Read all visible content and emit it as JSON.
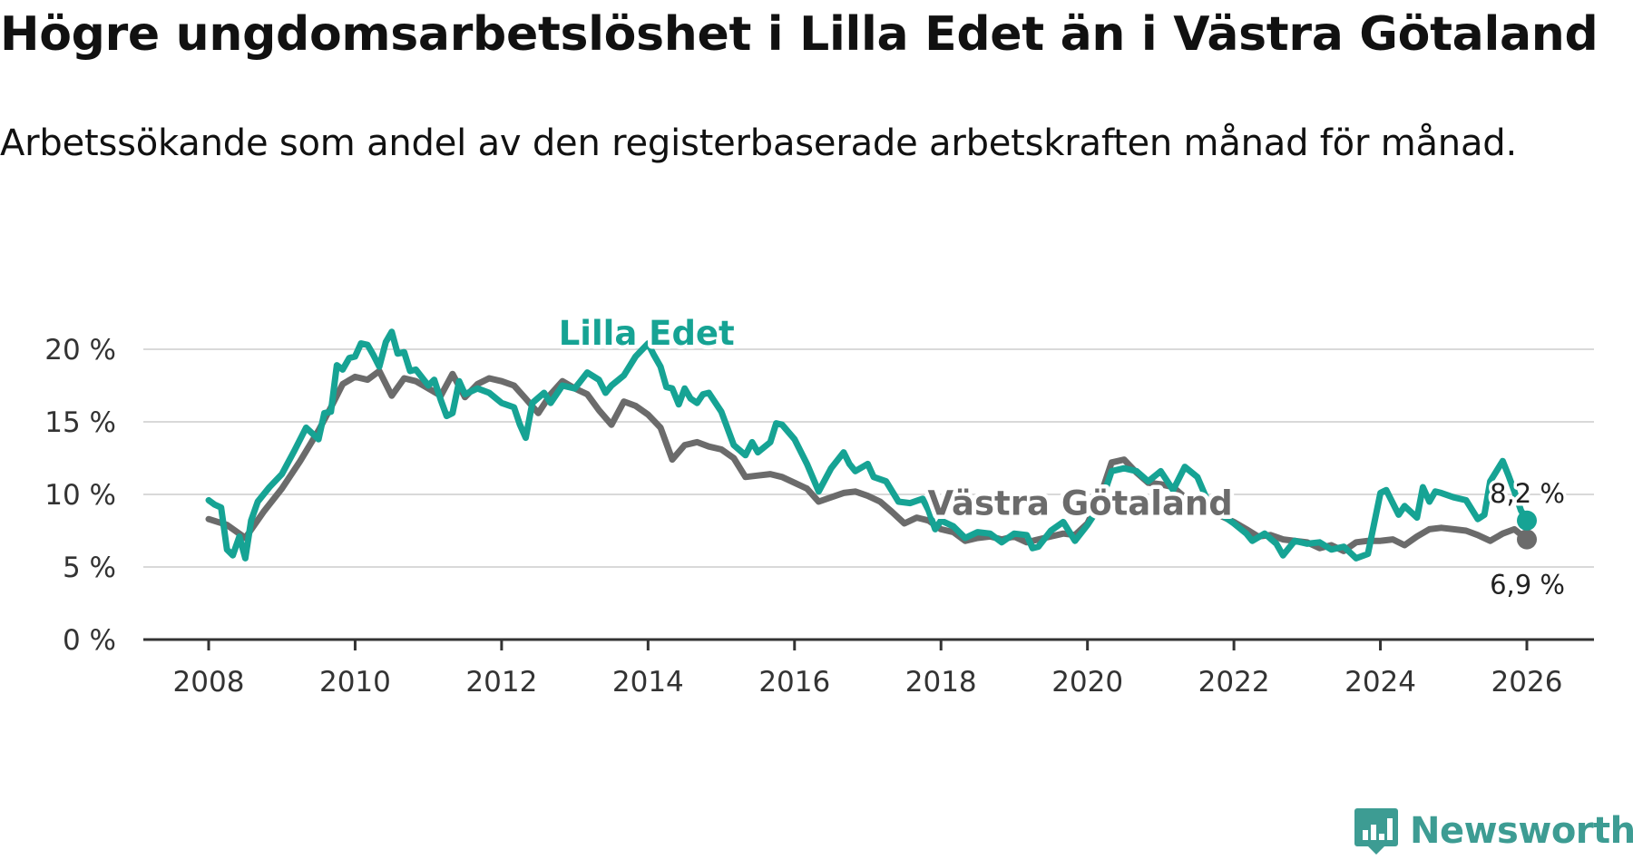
{
  "title": "Högre ungdomsarbetslöshet i Lilla Edet än i Västra Götaland",
  "subtitle": "Arbetssökande som andel av den registerbaserade arbetskraften månad för månad.",
  "brand": {
    "name": "Newsworthy",
    "icon": "newsworthy-logo-icon",
    "color": "#3d9c93"
  },
  "chart_data": {
    "type": "line",
    "title": "Högre ungdomsarbetslöshet i Lilla Edet än i Västra Götaland",
    "subtitle": "Arbetssökande som andel av den registerbaserade arbetskraften månad för månad.",
    "xlabel": "",
    "ylabel": "",
    "xlim": [
      2008,
      2026.5
    ],
    "ylim": [
      0,
      21.5
    ],
    "grid": true,
    "y_ticks": [
      {
        "value": 0,
        "label": "0 %"
      },
      {
        "value": 5,
        "label": "5 %"
      },
      {
        "value": 10,
        "label": "10 %"
      },
      {
        "value": 15,
        "label": "15 %"
      },
      {
        "value": 20,
        "label": "20 %"
      }
    ],
    "x_ticks": [
      {
        "value": 2008,
        "label": "2008"
      },
      {
        "value": 2010,
        "label": "2010"
      },
      {
        "value": 2012,
        "label": "2012"
      },
      {
        "value": 2014,
        "label": "2014"
      },
      {
        "value": 2016,
        "label": "2016"
      },
      {
        "value": 2018,
        "label": "2018"
      },
      {
        "value": 2020,
        "label": "2020"
      },
      {
        "value": 2022,
        "label": "2022"
      },
      {
        "value": 2024,
        "label": "2024"
      },
      {
        "value": 2026,
        "label": "2026"
      }
    ],
    "series": [
      {
        "name": "Västra Götaland",
        "label": "Västra Götaland",
        "color": "#6b6b6b",
        "end_label": "6,9 %",
        "points": [
          [
            2008.0,
            8.3
          ],
          [
            2008.25,
            7.9
          ],
          [
            2008.5,
            7.0
          ],
          [
            2008.75,
            8.8
          ],
          [
            2009.0,
            10.4
          ],
          [
            2009.25,
            12.3
          ],
          [
            2009.5,
            14.4
          ],
          [
            2009.67,
            16.0
          ],
          [
            2009.83,
            17.6
          ],
          [
            2010.0,
            18.1
          ],
          [
            2010.17,
            17.9
          ],
          [
            2010.33,
            18.5
          ],
          [
            2010.5,
            16.8
          ],
          [
            2010.67,
            18.0
          ],
          [
            2010.83,
            17.8
          ],
          [
            2011.0,
            17.3
          ],
          [
            2011.17,
            16.8
          ],
          [
            2011.33,
            18.3
          ],
          [
            2011.5,
            16.7
          ],
          [
            2011.67,
            17.6
          ],
          [
            2011.83,
            18.0
          ],
          [
            2012.0,
            17.8
          ],
          [
            2012.17,
            17.5
          ],
          [
            2012.33,
            16.6
          ],
          [
            2012.5,
            15.6
          ],
          [
            2012.67,
            16.9
          ],
          [
            2012.83,
            17.8
          ],
          [
            2013.0,
            17.3
          ],
          [
            2013.17,
            16.9
          ],
          [
            2013.33,
            15.8
          ],
          [
            2013.5,
            14.8
          ],
          [
            2013.67,
            16.4
          ],
          [
            2013.83,
            16.1
          ],
          [
            2014.0,
            15.5
          ],
          [
            2014.17,
            14.6
          ],
          [
            2014.33,
            12.4
          ],
          [
            2014.5,
            13.4
          ],
          [
            2014.67,
            13.6
          ],
          [
            2014.83,
            13.3
          ],
          [
            2015.0,
            13.1
          ],
          [
            2015.17,
            12.5
          ],
          [
            2015.33,
            11.2
          ],
          [
            2015.5,
            11.3
          ],
          [
            2015.67,
            11.4
          ],
          [
            2015.83,
            11.2
          ],
          [
            2016.0,
            10.8
          ],
          [
            2016.17,
            10.4
          ],
          [
            2016.33,
            9.5
          ],
          [
            2016.5,
            9.8
          ],
          [
            2016.67,
            10.1
          ],
          [
            2016.83,
            10.2
          ],
          [
            2017.0,
            9.9
          ],
          [
            2017.17,
            9.5
          ],
          [
            2017.33,
            8.8
          ],
          [
            2017.5,
            8.0
          ],
          [
            2017.67,
            8.4
          ],
          [
            2017.83,
            8.2
          ],
          [
            2018.0,
            7.6
          ],
          [
            2018.17,
            7.4
          ],
          [
            2018.33,
            6.8
          ],
          [
            2018.5,
            7.0
          ],
          [
            2018.67,
            7.1
          ],
          [
            2018.83,
            6.9
          ],
          [
            2019.0,
            7.1
          ],
          [
            2019.17,
            6.7
          ],
          [
            2019.33,
            6.9
          ],
          [
            2019.5,
            7.1
          ],
          [
            2019.67,
            7.3
          ],
          [
            2019.83,
            7.2
          ],
          [
            2020.0,
            8.0
          ],
          [
            2020.17,
            9.8
          ],
          [
            2020.33,
            12.2
          ],
          [
            2020.5,
            12.4
          ],
          [
            2020.67,
            11.5
          ],
          [
            2020.83,
            10.8
          ],
          [
            2021.0,
            10.7
          ],
          [
            2021.17,
            10.5
          ],
          [
            2021.33,
            9.8
          ],
          [
            2021.5,
            9.3
          ],
          [
            2021.67,
            8.9
          ],
          [
            2021.83,
            8.5
          ],
          [
            2022.0,
            8.1
          ],
          [
            2022.17,
            7.6
          ],
          [
            2022.33,
            7.1
          ],
          [
            2022.5,
            7.2
          ],
          [
            2022.67,
            6.9
          ],
          [
            2022.83,
            6.8
          ],
          [
            2023.0,
            6.7
          ],
          [
            2023.17,
            6.3
          ],
          [
            2023.33,
            6.5
          ],
          [
            2023.5,
            6.1
          ],
          [
            2023.67,
            6.7
          ],
          [
            2023.83,
            6.8
          ],
          [
            2024.0,
            6.8
          ],
          [
            2024.17,
            6.9
          ],
          [
            2024.33,
            6.5
          ],
          [
            2024.5,
            7.1
          ],
          [
            2024.67,
            7.6
          ],
          [
            2024.83,
            7.7
          ],
          [
            2025.0,
            7.6
          ],
          [
            2025.17,
            7.5
          ],
          [
            2025.33,
            7.2
          ],
          [
            2025.5,
            6.8
          ],
          [
            2025.67,
            7.3
          ],
          [
            2025.83,
            7.6
          ],
          [
            2026.0,
            6.9
          ]
        ]
      },
      {
        "name": "Lilla Edet",
        "label": "Lilla Edet",
        "color": "#16a394",
        "end_label": "8,2 %",
        "points": [
          [
            2008.0,
            9.6
          ],
          [
            2008.08,
            9.3
          ],
          [
            2008.17,
            9.1
          ],
          [
            2008.25,
            6.2
          ],
          [
            2008.33,
            5.8
          ],
          [
            2008.42,
            7.1
          ],
          [
            2008.5,
            5.6
          ],
          [
            2008.58,
            8.2
          ],
          [
            2008.67,
            9.5
          ],
          [
            2008.83,
            10.5
          ],
          [
            2009.0,
            11.4
          ],
          [
            2009.17,
            13.0
          ],
          [
            2009.33,
            14.6
          ],
          [
            2009.5,
            13.8
          ],
          [
            2009.58,
            15.6
          ],
          [
            2009.67,
            15.7
          ],
          [
            2009.75,
            18.9
          ],
          [
            2009.83,
            18.6
          ],
          [
            2009.92,
            19.4
          ],
          [
            2010.0,
            19.5
          ],
          [
            2010.08,
            20.4
          ],
          [
            2010.17,
            20.3
          ],
          [
            2010.25,
            19.6
          ],
          [
            2010.33,
            18.8
          ],
          [
            2010.42,
            20.5
          ],
          [
            2010.5,
            21.2
          ],
          [
            2010.58,
            19.7
          ],
          [
            2010.67,
            19.8
          ],
          [
            2010.75,
            18.5
          ],
          [
            2010.83,
            18.6
          ],
          [
            2011.0,
            17.5
          ],
          [
            2011.08,
            17.9
          ],
          [
            2011.17,
            16.5
          ],
          [
            2011.25,
            15.4
          ],
          [
            2011.33,
            15.6
          ],
          [
            2011.42,
            17.8
          ],
          [
            2011.5,
            16.9
          ],
          [
            2011.67,
            17.3
          ],
          [
            2011.83,
            17.0
          ],
          [
            2012.0,
            16.3
          ],
          [
            2012.17,
            16.0
          ],
          [
            2012.25,
            14.8
          ],
          [
            2012.33,
            13.9
          ],
          [
            2012.42,
            16.3
          ],
          [
            2012.58,
            17.0
          ],
          [
            2012.67,
            16.3
          ],
          [
            2012.83,
            17.5
          ],
          [
            2013.0,
            17.3
          ],
          [
            2013.17,
            18.4
          ],
          [
            2013.33,
            17.9
          ],
          [
            2013.42,
            17.0
          ],
          [
            2013.5,
            17.5
          ],
          [
            2013.67,
            18.2
          ],
          [
            2013.83,
            19.5
          ],
          [
            2014.0,
            20.4
          ],
          [
            2014.08,
            19.6
          ],
          [
            2014.17,
            18.8
          ],
          [
            2014.25,
            17.4
          ],
          [
            2014.33,
            17.3
          ],
          [
            2014.42,
            16.2
          ],
          [
            2014.5,
            17.3
          ],
          [
            2014.58,
            16.6
          ],
          [
            2014.67,
            16.3
          ],
          [
            2014.75,
            16.9
          ],
          [
            2014.83,
            17.0
          ],
          [
            2015.0,
            15.7
          ],
          [
            2015.17,
            13.4
          ],
          [
            2015.33,
            12.7
          ],
          [
            2015.42,
            13.6
          ],
          [
            2015.5,
            12.9
          ],
          [
            2015.67,
            13.6
          ],
          [
            2015.75,
            14.9
          ],
          [
            2015.83,
            14.8
          ],
          [
            2016.0,
            13.8
          ],
          [
            2016.17,
            12.1
          ],
          [
            2016.33,
            10.2
          ],
          [
            2016.5,
            11.8
          ],
          [
            2016.67,
            12.9
          ],
          [
            2016.75,
            12.1
          ],
          [
            2016.83,
            11.6
          ],
          [
            2017.0,
            12.1
          ],
          [
            2017.08,
            11.2
          ],
          [
            2017.25,
            10.9
          ],
          [
            2017.42,
            9.5
          ],
          [
            2017.58,
            9.4
          ],
          [
            2017.75,
            9.7
          ],
          [
            2017.83,
            8.9
          ],
          [
            2017.92,
            7.6
          ],
          [
            2018.0,
            8.2
          ],
          [
            2018.17,
            7.8
          ],
          [
            2018.33,
            7.0
          ],
          [
            2018.5,
            7.4
          ],
          [
            2018.67,
            7.3
          ],
          [
            2018.83,
            6.7
          ],
          [
            2019.0,
            7.3
          ],
          [
            2019.17,
            7.2
          ],
          [
            2019.25,
            6.3
          ],
          [
            2019.33,
            6.4
          ],
          [
            2019.5,
            7.5
          ],
          [
            2019.67,
            8.1
          ],
          [
            2019.83,
            6.8
          ],
          [
            2020.0,
            7.9
          ],
          [
            2020.17,
            9.2
          ],
          [
            2020.33,
            11.6
          ],
          [
            2020.5,
            11.8
          ],
          [
            2020.67,
            11.6
          ],
          [
            2020.83,
            10.9
          ],
          [
            2021.0,
            11.6
          ],
          [
            2021.17,
            10.3
          ],
          [
            2021.33,
            11.9
          ],
          [
            2021.5,
            11.2
          ],
          [
            2021.67,
            9.2
          ],
          [
            2021.83,
            8.6
          ],
          [
            2022.0,
            8.0
          ],
          [
            2022.17,
            7.3
          ],
          [
            2022.25,
            6.8
          ],
          [
            2022.42,
            7.3
          ],
          [
            2022.58,
            6.6
          ],
          [
            2022.67,
            5.8
          ],
          [
            2022.83,
            6.8
          ],
          [
            2023.0,
            6.6
          ],
          [
            2023.17,
            6.7
          ],
          [
            2023.33,
            6.2
          ],
          [
            2023.5,
            6.4
          ],
          [
            2023.67,
            5.6
          ],
          [
            2023.83,
            5.9
          ],
          [
            2024.0,
            10.1
          ],
          [
            2024.08,
            10.3
          ],
          [
            2024.25,
            8.6
          ],
          [
            2024.33,
            9.2
          ],
          [
            2024.5,
            8.4
          ],
          [
            2024.58,
            10.5
          ],
          [
            2024.67,
            9.5
          ],
          [
            2024.75,
            10.2
          ],
          [
            2024.83,
            10.1
          ],
          [
            2025.0,
            9.8
          ],
          [
            2025.17,
            9.6
          ],
          [
            2025.33,
            8.3
          ],
          [
            2025.42,
            8.6
          ],
          [
            2025.5,
            10.9
          ],
          [
            2025.67,
            12.3
          ],
          [
            2025.75,
            11.3
          ],
          [
            2025.83,
            10.2
          ],
          [
            2025.92,
            8.9
          ],
          [
            2026.0,
            8.2
          ]
        ]
      }
    ],
    "annotations": [
      {
        "text": "Lilla Edet",
        "series": "Lilla Edet",
        "x": 2013.98,
        "y": 20.3
      },
      {
        "text": "Västra Götaland",
        "series": "Västra Götaland",
        "x": 2019.9,
        "y": 8.6
      }
    ]
  }
}
